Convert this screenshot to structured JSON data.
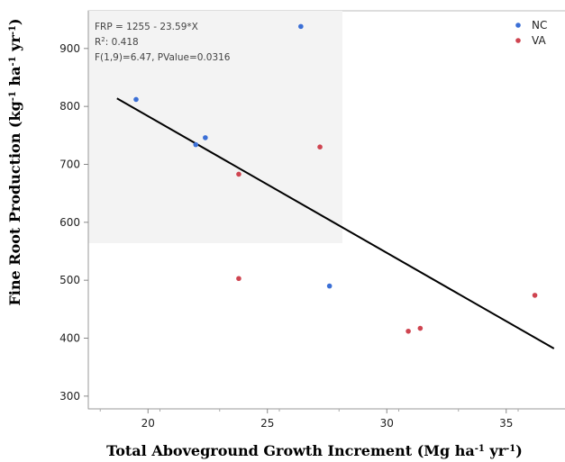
{
  "chart_data": {
    "type": "scatter",
    "xlabel": {
      "main": "Total Aboveground Growth Increment (Mg ha",
      "sup1": "-1",
      "mid": " yr",
      "sup2": "-1",
      "end": ")"
    },
    "ylabel": {
      "main": "Fine Root Production (kg",
      "sup1": "-1",
      "mid1": " ha",
      "sup2": "-1",
      "mid2": " yr",
      "sup3": "-1",
      "end": ")"
    },
    "xlim": [
      17.5,
      37.5
    ],
    "ylim": [
      278,
      965
    ],
    "x_ticks": [
      20,
      25,
      30,
      35
    ],
    "y_ticks": [
      300,
      400,
      500,
      600,
      700,
      800,
      900
    ],
    "grid": false,
    "legend_position": "top-right",
    "series": [
      {
        "name": "NC",
        "color": "#3b6fd6",
        "points": [
          {
            "x": 19.5,
            "y": 812
          },
          {
            "x": 22.0,
            "y": 734
          },
          {
            "x": 22.4,
            "y": 746
          },
          {
            "x": 26.4,
            "y": 938
          },
          {
            "x": 27.6,
            "y": 490
          }
        ]
      },
      {
        "name": "VA",
        "color": "#cf4450",
        "points": [
          {
            "x": 23.8,
            "y": 683
          },
          {
            "x": 23.8,
            "y": 503
          },
          {
            "x": 27.2,
            "y": 730
          },
          {
            "x": 30.9,
            "y": 412
          },
          {
            "x": 31.4,
            "y": 417
          },
          {
            "x": 36.2,
            "y": 474
          }
        ]
      }
    ],
    "fit_line": {
      "x_start": 18.7,
      "x_end": 37.0,
      "intercept": 1255,
      "slope": -23.59,
      "color": "#000000"
    },
    "stats": {
      "equation": "FRP = 1255 - 23.59*X",
      "r2_prefix": "R",
      "r2_sup": "2",
      "r2_value": ": 0.418",
      "anova": "F(1,9)=6.47, PValue=0.0316"
    }
  }
}
